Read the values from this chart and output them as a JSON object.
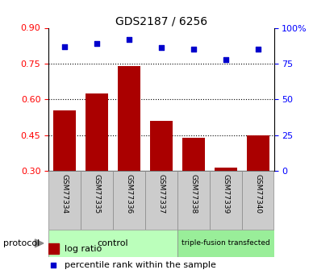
{
  "title": "GDS2187 / 6256",
  "samples": [
    "GSM77334",
    "GSM77335",
    "GSM77336",
    "GSM77337",
    "GSM77338",
    "GSM77339",
    "GSM77340"
  ],
  "log_ratio": [
    0.555,
    0.625,
    0.74,
    0.51,
    0.44,
    0.315,
    0.45
  ],
  "percentile": [
    87,
    89,
    92,
    86,
    85,
    78,
    85
  ],
  "ylim_left": [
    0.3,
    0.9
  ],
  "ylim_right": [
    0,
    100
  ],
  "yticks_left": [
    0.3,
    0.45,
    0.6,
    0.75,
    0.9
  ],
  "yticks_right": [
    0,
    25,
    50,
    75,
    100
  ],
  "ytick_labels_right": [
    "0",
    "25",
    "50",
    "75",
    "100%"
  ],
  "bar_color": "#aa0000",
  "scatter_color": "#0000cc",
  "group_control_indices": [
    0,
    1,
    2,
    3
  ],
  "group_treatment_indices": [
    4,
    5,
    6
  ],
  "group_control_label": "control",
  "group_treatment_label": "triple-fusion transfected",
  "protocol_label": "protocol",
  "legend_bar_label": "log ratio",
  "legend_scatter_label": "percentile rank within the sample",
  "bar_width": 0.7,
  "background_color": "#ffffff",
  "sample_box_color": "#cccccc",
  "group_control_color": "#bbffbb",
  "group_treatment_color": "#99ee99",
  "bar_bottom": 0.3,
  "dotted_lines": [
    0.45,
    0.6,
    0.75
  ]
}
